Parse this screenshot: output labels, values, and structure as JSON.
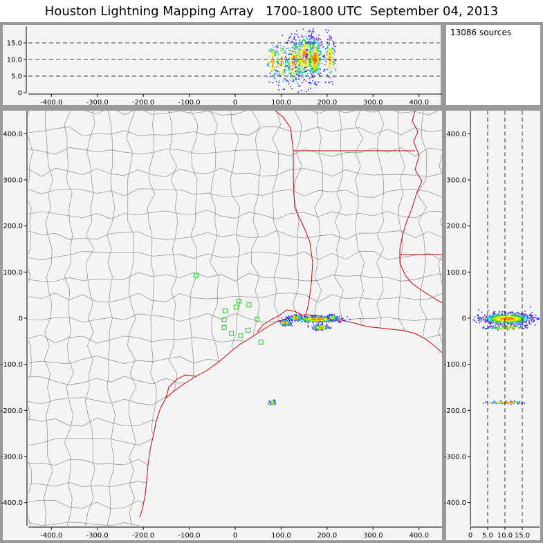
{
  "header": {
    "title_left": "Houston Lightning Mapping Array",
    "title_time": "1700-1800 UTC",
    "title_date": "September 04, 2013"
  },
  "source_count": "13086 sources",
  "colors": {
    "background": "#f4f4f4",
    "frame": "#9a9a9a",
    "county_lines": "#8a8a8a",
    "coast_and_state_lines": "#cc0000",
    "stations": "#22cc22",
    "density_scale": [
      "#1a1aff",
      "#8a2be2",
      "#00bfff",
      "#00c060",
      "#a0e000",
      "#ffff00",
      "#ff8000"
    ]
  },
  "chart_data": [
    {
      "type": "scatter",
      "panel": "east-west vs altitude",
      "xlim": [
        -450,
        450
      ],
      "ylim": [
        0,
        20
      ],
      "xticks": [
        "-400.0",
        "-300.0",
        "-200.0",
        "-100.0",
        "0",
        "100.0",
        "200.0",
        "300.0",
        "400.0"
      ],
      "yticks": [
        "0",
        "5.0",
        "10.0",
        "15.0"
      ],
      "gridlines_y": [
        5,
        10,
        15
      ],
      "clusters": [
        {
          "x": 80,
          "y": 9.5,
          "sx": 6,
          "sy": 3.0,
          "n": 90
        },
        {
          "x": 100,
          "y": 9.0,
          "sx": 6,
          "sy": 3.5,
          "n": 110
        },
        {
          "x": 128,
          "y": 9.5,
          "sx": 10,
          "sy": 3.5,
          "n": 220
        },
        {
          "x": 150,
          "y": 11.0,
          "sx": 12,
          "sy": 3.5,
          "n": 380
        },
        {
          "x": 172,
          "y": 10.5,
          "sx": 8,
          "sy": 3.0,
          "n": 360
        },
        {
          "x": 205,
          "y": 10.5,
          "sx": 6,
          "sy": 3.0,
          "n": 140
        }
      ]
    },
    {
      "type": "scatter",
      "panel": "plan view",
      "xlim": [
        -450,
        450
      ],
      "ylim": [
        -450,
        450
      ],
      "xticks": [
        "-400.0",
        "-300.0",
        "-200.0",
        "-100.0",
        "0",
        "100.0",
        "200.0",
        "300.0",
        "400.0"
      ],
      "yticks": [
        "400.0",
        "300.0",
        "200.0",
        "100.0",
        "0",
        "-100.0",
        "-200.0",
        "-300.0",
        "-400.0"
      ],
      "clusters": [
        {
          "x": 178,
          "y": -1,
          "sx": 26,
          "sy": 3,
          "n": 520
        },
        {
          "x": 130,
          "y": 2,
          "sx": 7,
          "sy": 2.5,
          "n": 160
        },
        {
          "x": 108,
          "y": -9,
          "sx": 6,
          "sy": 3,
          "n": 110
        },
        {
          "x": 185,
          "y": -19,
          "sx": 9,
          "sy": 3,
          "n": 150
        },
        {
          "x": 210,
          "y": 3,
          "sx": 5,
          "sy": 2.5,
          "n": 90
        },
        {
          "x": 80,
          "y": -182,
          "sx": 3,
          "sy": 2.5,
          "n": 60
        }
      ],
      "stations": [
        {
          "x": -85,
          "y": 93
        },
        {
          "x": -22,
          "y": 16
        },
        {
          "x": 8,
          "y": 37
        },
        {
          "x": 2,
          "y": 24
        },
        {
          "x": 30,
          "y": 29
        },
        {
          "x": -24,
          "y": -3
        },
        {
          "x": -24,
          "y": -20
        },
        {
          "x": -8,
          "y": -33
        },
        {
          "x": 12,
          "y": -38
        },
        {
          "x": 28,
          "y": -26
        },
        {
          "x": 48,
          "y": -2
        },
        {
          "x": 56,
          "y": -52
        }
      ]
    },
    {
      "type": "scatter",
      "panel": "altitude vs north-south",
      "xlim": [
        0,
        20
      ],
      "ylim": [
        -450,
        450
      ],
      "xticks": [
        "0",
        "5.0",
        "10.0",
        "15.0"
      ],
      "yticks": [
        "400.0",
        "300.0",
        "200.0",
        "100.0",
        "0",
        "-100.0",
        "-200.0",
        "-300.0",
        "-400.0"
      ],
      "gridlines_x": [
        5,
        10,
        15
      ],
      "clusters": [
        {
          "x": 10.5,
          "y": 0,
          "sx": 3.5,
          "sy": 6,
          "n": 900
        },
        {
          "x": 10.5,
          "y": -19,
          "sx": 3,
          "sy": 2,
          "n": 140
        },
        {
          "x": 10.5,
          "y": -182,
          "sx": 2.5,
          "sy": 1.5,
          "n": 80
        }
      ]
    }
  ]
}
